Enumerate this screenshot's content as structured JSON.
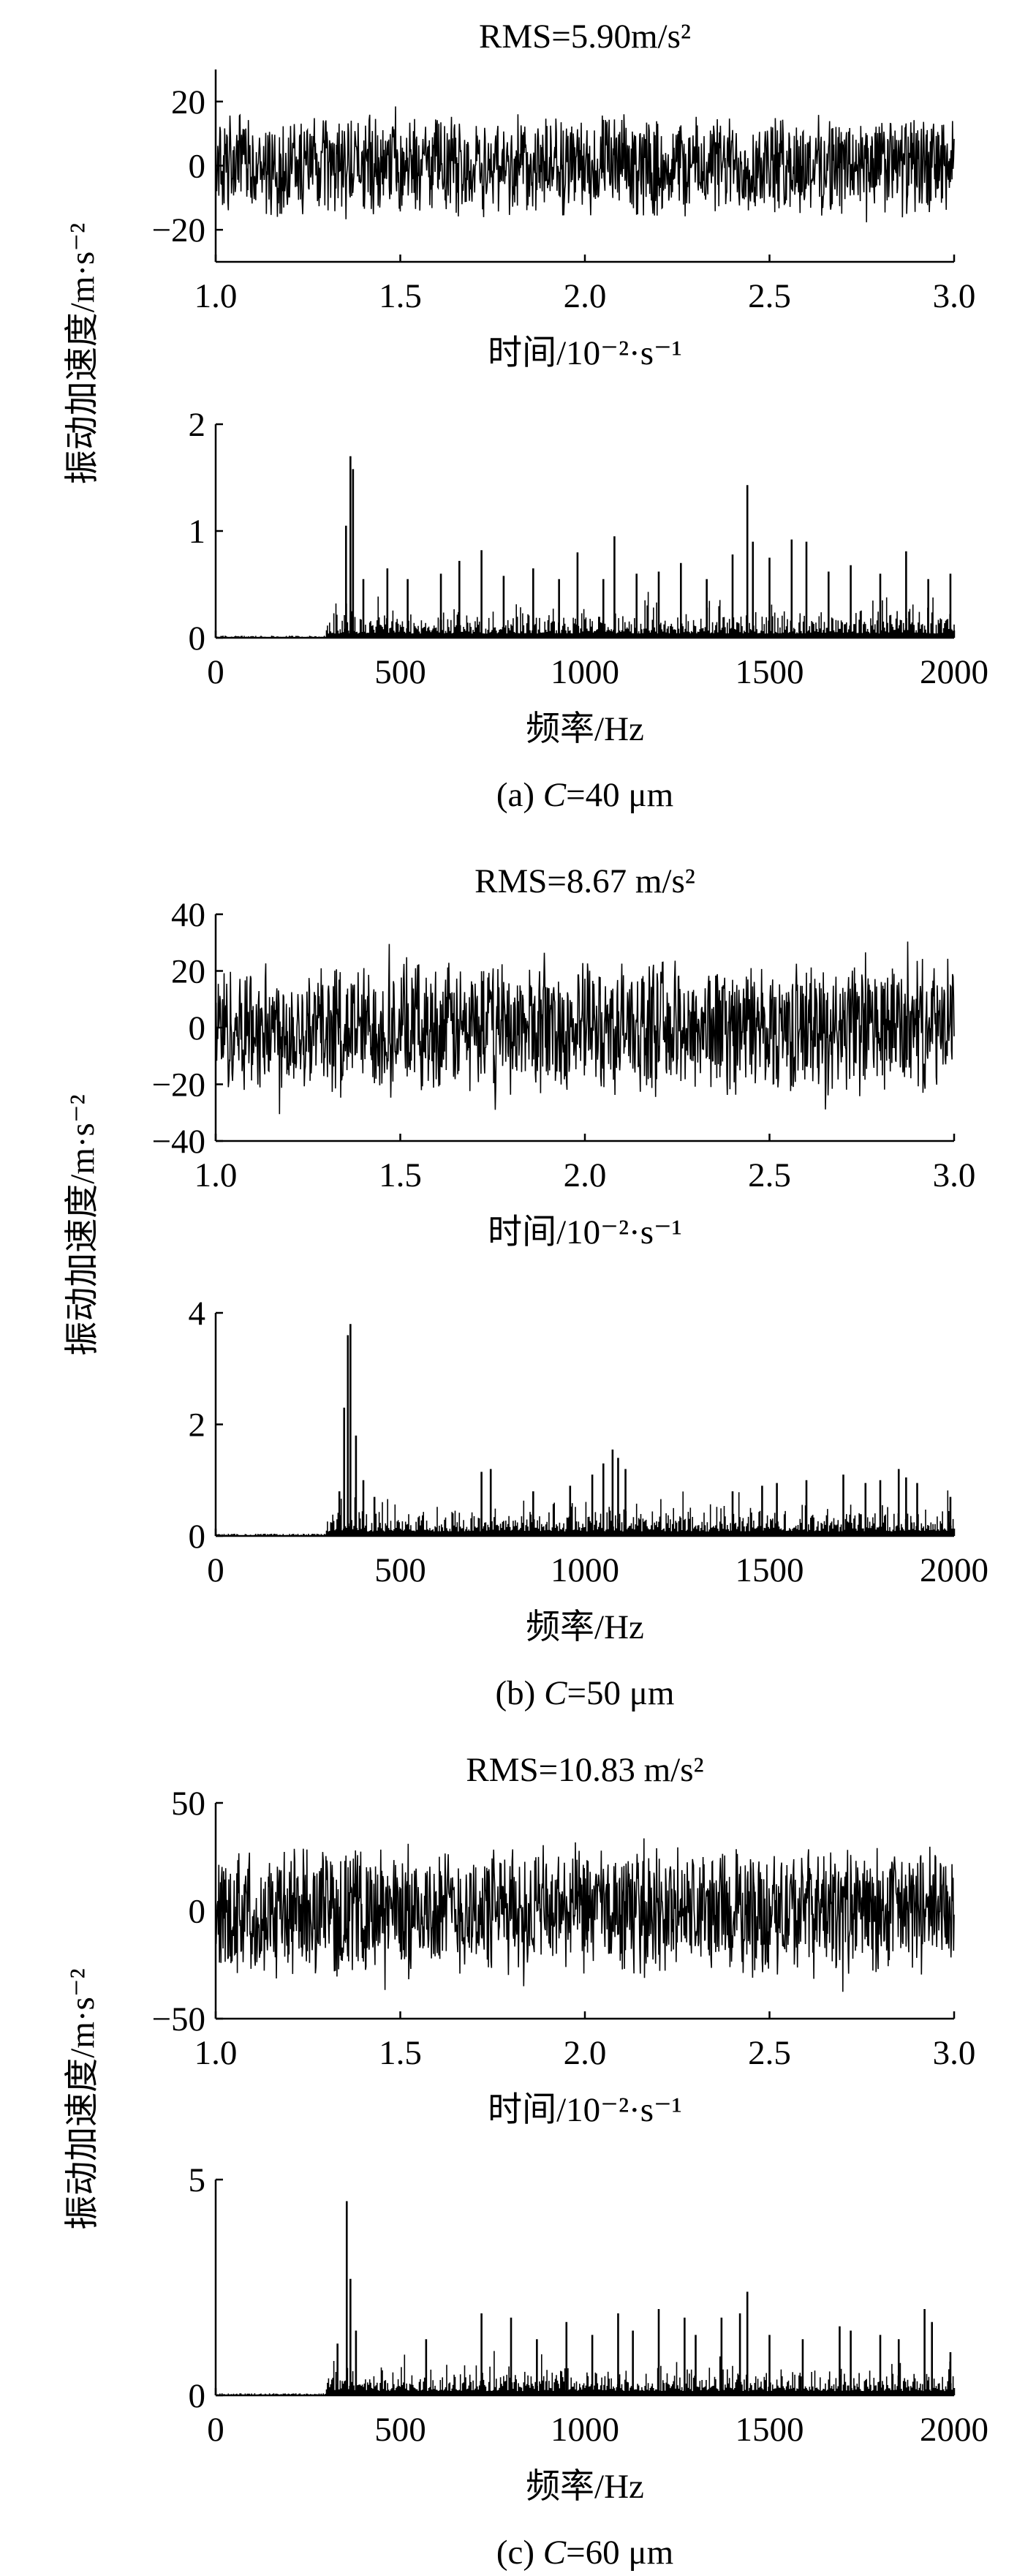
{
  "chart_data": [
    {
      "type": "line",
      "subplot": "a-time",
      "annotation": "RMS=5.90m/s²",
      "xlabel": "时间/10⁻²·s⁻¹",
      "xlim": [
        1.0,
        3.0
      ],
      "xticks": [
        "1.0",
        "1.5",
        "2.0",
        "2.5",
        "3.0"
      ],
      "ylim": [
        -30,
        30
      ],
      "yticks": [
        "−20",
        "0",
        "20"
      ],
      "series": [
        {
          "envelope_amplitude": 17,
          "rms": 5.9
        }
      ]
    },
    {
      "type": "bar",
      "subplot": "a-spectrum",
      "xlabel": "频率/Hz",
      "xlim": [
        0,
        2000
      ],
      "xticks": [
        "0",
        "500",
        "1000",
        "1500",
        "2000"
      ],
      "ylim": [
        0,
        2
      ],
      "yticks": [
        "0",
        "1",
        "2"
      ],
      "caption": "(a) C=40 μm",
      "caption_prefix": "(a) ",
      "caption_var": "C",
      "caption_rest": "=40 μm",
      "series": [
        {
          "x": [
            353,
            365,
            372,
            400,
            465,
            520,
            610,
            660,
            720,
            780,
            860,
            930,
            980,
            1050,
            1080,
            1140,
            1200,
            1260,
            1330,
            1400,
            1440,
            1455,
            1500,
            1560,
            1600,
            1660,
            1720,
            1800,
            1870,
            1930,
            1990
          ],
          "values": [
            1.05,
            1.7,
            1.58,
            0.55,
            0.65,
            0.55,
            0.6,
            0.72,
            0.82,
            0.58,
            0.65,
            0.55,
            0.8,
            0.55,
            0.95,
            0.6,
            0.62,
            0.7,
            0.55,
            0.78,
            1.43,
            0.9,
            0.75,
            0.92,
            0.9,
            0.62,
            0.68,
            0.6,
            0.81,
            0.55,
            0.6
          ]
        }
      ]
    },
    {
      "type": "line",
      "subplot": "b-time",
      "annotation": "RMS=8.67 m/s²",
      "xlabel": "时间/10⁻²·s⁻¹",
      "xlim": [
        1.0,
        3.0
      ],
      "xticks": [
        "1.0",
        "1.5",
        "2.0",
        "2.5",
        "3.0"
      ],
      "ylim": [
        -40,
        40
      ],
      "yticks": [
        "−40",
        "−20",
        "0",
        "20",
        "40"
      ],
      "series": [
        {
          "envelope_amplitude": 25,
          "rms": 8.67
        }
      ]
    },
    {
      "type": "bar",
      "subplot": "b-spectrum",
      "xlabel": "频率/Hz",
      "xlim": [
        0,
        2000
      ],
      "xticks": [
        "0",
        "500",
        "1000",
        "1500",
        "2000"
      ],
      "ylim": [
        0,
        4
      ],
      "yticks": [
        "0",
        "2",
        "4"
      ],
      "caption": "(b) C=50 μm",
      "caption_prefix": "(b) ",
      "caption_var": "C",
      "caption_rest": "=50 μm",
      "series": [
        {
          "x": [
            335,
            348,
            358,
            365,
            380,
            400,
            430,
            720,
            745,
            860,
            960,
            1020,
            1050,
            1075,
            1090,
            1110,
            1400,
            1480,
            1520,
            1600,
            1700,
            1760,
            1800,
            1850,
            1870,
            1900,
            1990
          ],
          "values": [
            0.8,
            2.3,
            3.6,
            3.8,
            1.8,
            1.0,
            0.7,
            1.15,
            1.2,
            0.8,
            0.9,
            1.1,
            1.3,
            1.55,
            1.4,
            1.2,
            0.8,
            0.9,
            0.95,
            1.0,
            1.1,
            0.95,
            1.0,
            1.2,
            1.05,
            0.95,
            0.7
          ]
        }
      ]
    },
    {
      "type": "line",
      "subplot": "c-time",
      "annotation": "RMS=10.83 m/s²",
      "xlabel": "时间/10⁻²·s⁻¹",
      "xlim": [
        1.0,
        3.0
      ],
      "xticks": [
        "1.0",
        "1.5",
        "2.0",
        "2.5",
        "3.0"
      ],
      "ylim": [
        -50,
        50
      ],
      "yticks": [
        "−50",
        "0",
        "50"
      ],
      "series": [
        {
          "envelope_amplitude": 32,
          "rms": 10.83
        }
      ]
    },
    {
      "type": "bar",
      "subplot": "c-spectrum",
      "xlabel": "频率/Hz",
      "xlim": [
        0,
        2000
      ],
      "xticks": [
        "0",
        "500",
        "1000",
        "1500",
        "2000"
      ],
      "ylim": [
        0,
        5
      ],
      "yticks": [
        "0",
        "5"
      ],
      "caption": "(c) C=60 μm",
      "caption_prefix": "(c) ",
      "caption_var": "C",
      "caption_rest": "=60 μm",
      "series": [
        {
          "x": [
            330,
            355,
            365,
            380,
            570,
            720,
            800,
            870,
            950,
            1020,
            1090,
            1130,
            1200,
            1270,
            1300,
            1370,
            1420,
            1440,
            1500,
            1590,
            1690,
            1720,
            1800,
            1850,
            1920,
            1940,
            1990
          ],
          "values": [
            1.2,
            4.5,
            2.7,
            1.5,
            1.3,
            1.9,
            1.8,
            1.3,
            1.7,
            1.4,
            1.9,
            1.5,
            2.0,
            1.8,
            1.4,
            1.8,
            1.9,
            2.4,
            1.4,
            1.3,
            1.6,
            1.5,
            1.4,
            1.3,
            2.0,
            1.7,
            1.0
          ]
        }
      ]
    }
  ],
  "shared_ylabel": "振动加速度/m·s⁻²",
  "colors": {
    "trace": "#000000",
    "axis": "#000000",
    "background": "#ffffff"
  }
}
